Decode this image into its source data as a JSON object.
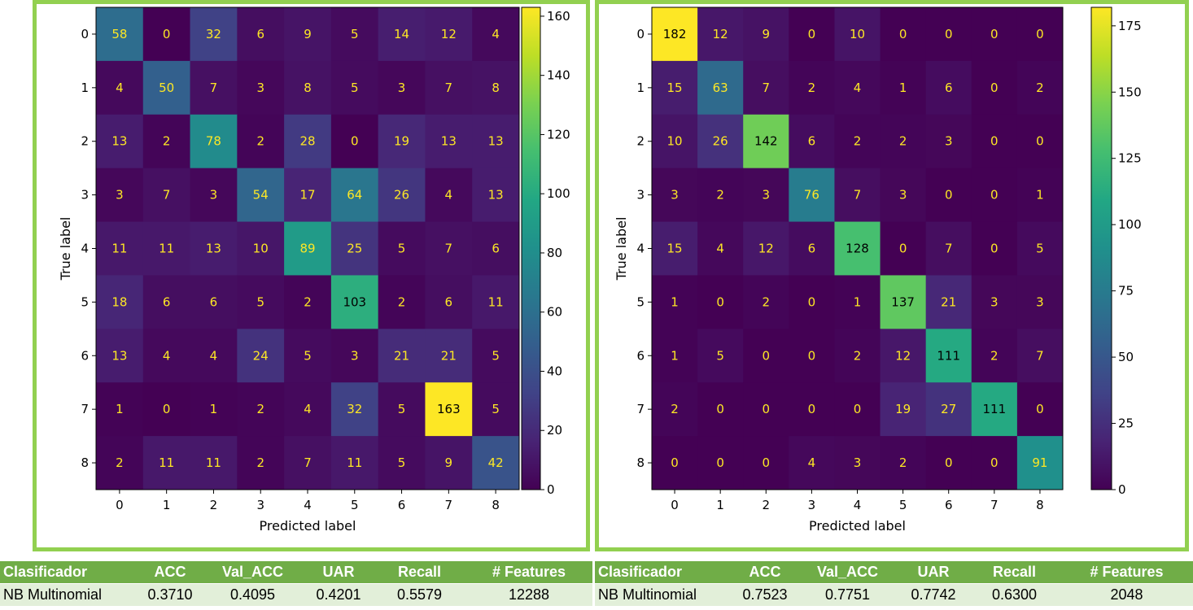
{
  "chart_data": [
    {
      "type": "heatmap",
      "xlabel": "Predicted label",
      "ylabel": "True label",
      "x_categories": [
        "0",
        "1",
        "2",
        "3",
        "4",
        "5",
        "6",
        "7",
        "8"
      ],
      "y_categories": [
        "0",
        "1",
        "2",
        "3",
        "4",
        "5",
        "6",
        "7",
        "8"
      ],
      "values": [
        [
          58,
          0,
          32,
          6,
          9,
          5,
          14,
          12,
          4
        ],
        [
          4,
          50,
          7,
          3,
          8,
          5,
          3,
          7,
          8
        ],
        [
          13,
          2,
          78,
          2,
          28,
          0,
          19,
          13,
          13
        ],
        [
          3,
          7,
          3,
          54,
          17,
          64,
          26,
          4,
          13
        ],
        [
          11,
          11,
          13,
          10,
          89,
          25,
          5,
          7,
          6
        ],
        [
          18,
          6,
          6,
          5,
          2,
          103,
          2,
          6,
          11
        ],
        [
          13,
          4,
          4,
          24,
          5,
          3,
          21,
          21,
          5
        ],
        [
          1,
          0,
          1,
          2,
          4,
          32,
          5,
          163,
          5
        ],
        [
          2,
          11,
          11,
          2,
          7,
          11,
          5,
          9,
          42
        ]
      ],
      "colormap": "viridis",
      "colorbar_range": [
        0,
        163
      ],
      "colorbar_ticks": [
        0,
        20,
        40,
        60,
        80,
        100,
        120,
        140,
        160
      ]
    },
    {
      "type": "heatmap",
      "xlabel": "Predicted label",
      "ylabel": "True label",
      "x_categories": [
        "0",
        "1",
        "2",
        "3",
        "4",
        "5",
        "6",
        "7",
        "8"
      ],
      "y_categories": [
        "0",
        "1",
        "2",
        "3",
        "4",
        "5",
        "6",
        "7",
        "8"
      ],
      "values": [
        [
          182,
          12,
          9,
          0,
          10,
          0,
          0,
          0,
          0
        ],
        [
          15,
          63,
          7,
          2,
          4,
          1,
          6,
          0,
          2
        ],
        [
          10,
          26,
          142,
          6,
          2,
          2,
          3,
          0,
          0
        ],
        [
          3,
          2,
          3,
          76,
          7,
          3,
          0,
          0,
          1
        ],
        [
          15,
          4,
          12,
          6,
          128,
          0,
          7,
          0,
          5
        ],
        [
          1,
          0,
          2,
          0,
          1,
          137,
          21,
          3,
          3
        ],
        [
          1,
          5,
          0,
          0,
          2,
          12,
          111,
          2,
          7
        ],
        [
          2,
          0,
          0,
          0,
          0,
          19,
          27,
          111,
          0
        ],
        [
          0,
          0,
          0,
          4,
          3,
          2,
          0,
          0,
          91
        ]
      ],
      "colormap": "viridis",
      "colorbar_range": [
        0,
        182
      ],
      "colorbar_ticks": [
        0,
        25,
        50,
        75,
        100,
        125,
        150,
        175
      ]
    }
  ],
  "tables": [
    {
      "headers": [
        "Clasificador",
        "ACC",
        "Val_ACC",
        "UAR",
        "Recall",
        "# Features"
      ],
      "row": [
        "NB Multinomial",
        "0.3710",
        "0.4095",
        "0.4201",
        "0.5579",
        "12288"
      ]
    },
    {
      "headers": [
        "Clasificador",
        "ACC",
        "Val_ACC",
        "UAR",
        "Recall",
        "# Features"
      ],
      "row": [
        "NB Multinomial",
        "0.7523",
        "0.7751",
        "0.7742",
        "0.6300",
        "2048"
      ]
    }
  ],
  "colors": {
    "frame": "#92d050",
    "table_header": "#70ad47",
    "table_row": "#e2efd9"
  }
}
